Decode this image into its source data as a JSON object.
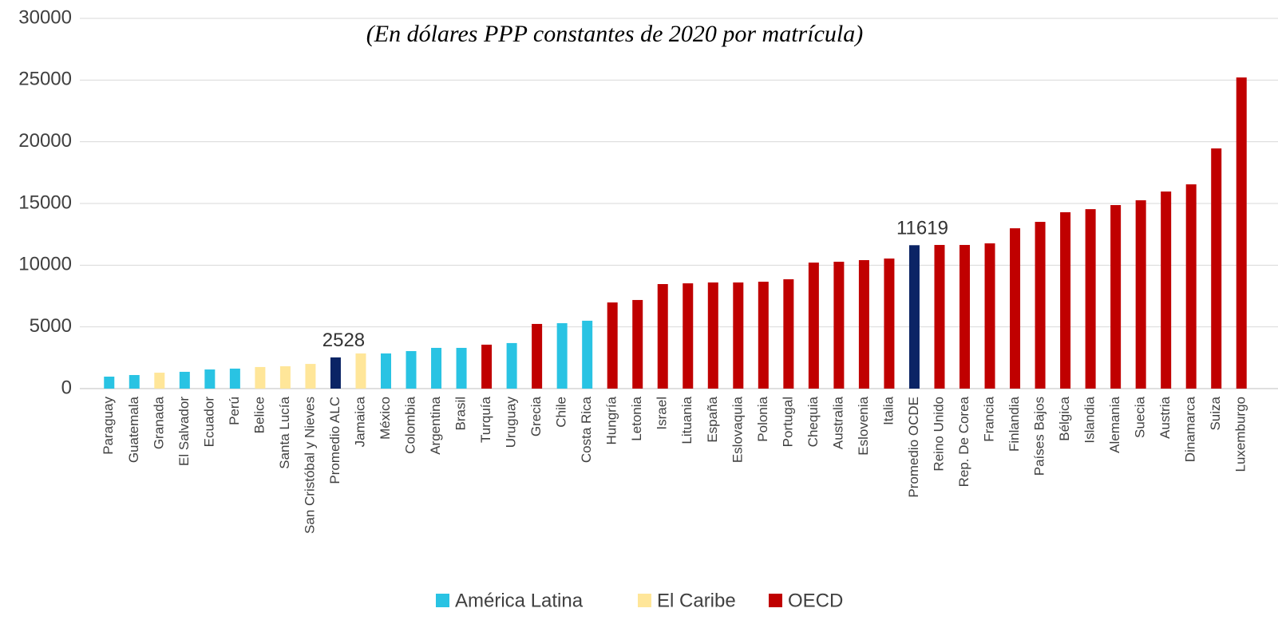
{
  "chart_data": {
    "type": "bar",
    "subtitle": "(En dólares PPP constantes de 2020 por matrícula)",
    "categories": [
      "Paraguay",
      "Guatemala",
      "Granada",
      "El Salvador",
      "Ecuador",
      "Perú",
      "Belice",
      "Santa Lucía",
      "San Cristóbal y Nieves",
      "Promedio ALC",
      "Jamaica",
      "México",
      "Colombia",
      "Argentina",
      "Brasil",
      "Turquía",
      "Uruguay",
      "Grecia",
      "Chile",
      "Costa Rica",
      "Hungría",
      "Letonia",
      "Israel",
      "Lituania",
      "España",
      "Eslovaquia",
      "Polonia",
      "Portugal",
      "Chequia",
      "Australia",
      "Eslovenia",
      "Italia",
      "Promedio OCDE",
      "Reino Unido",
      "Rep. De Corea",
      "Francia",
      "Finlandia",
      "Países Bajos",
      "Bélgica",
      "Islandia",
      "Alemania",
      "Suecia",
      "Austria",
      "Dinamarca",
      "Suiza",
      "Luxemburgo"
    ],
    "values": [
      970,
      1100,
      1290,
      1360,
      1550,
      1620,
      1750,
      1810,
      2000,
      2528,
      2850,
      2850,
      3040,
      3300,
      3300,
      3560,
      3690,
      5240,
      5300,
      5500,
      6980,
      7180,
      8470,
      8530,
      8600,
      8600,
      8660,
      8860,
      10210,
      10280,
      10410,
      10540,
      11619,
      11640,
      11640,
      11770,
      12990,
      13510,
      14290,
      14540,
      14870,
      15260,
      15970,
      16550,
      19460,
      25210
    ],
    "value_labels": [
      null,
      null,
      null,
      null,
      null,
      null,
      null,
      null,
      null,
      "2528",
      null,
      null,
      null,
      null,
      null,
      null,
      null,
      null,
      null,
      null,
      null,
      null,
      null,
      null,
      null,
      null,
      null,
      null,
      null,
      null,
      null,
      null,
      "11619",
      null,
      null,
      null,
      null,
      null,
      null,
      null,
      null,
      null,
      null,
      null,
      null,
      null
    ],
    "colors": [
      "#29c3e3",
      "#29c3e3",
      "#ffe699",
      "#29c3e3",
      "#29c3e3",
      "#29c3e3",
      "#ffe699",
      "#ffe699",
      "#ffe699",
      "#0b2465",
      "#ffe699",
      "#29c3e3",
      "#29c3e3",
      "#29c3e3",
      "#29c3e3",
      "#c00000",
      "#29c3e3",
      "#c00000",
      "#29c3e3",
      "#29c3e3",
      "#c00000",
      "#c00000",
      "#c00000",
      "#c00000",
      "#c00000",
      "#c00000",
      "#c00000",
      "#c00000",
      "#c00000",
      "#c00000",
      "#c00000",
      "#c00000",
      "#0b2465",
      "#c00000",
      "#c00000",
      "#c00000",
      "#c00000",
      "#c00000",
      "#c00000",
      "#c00000",
      "#c00000",
      "#c00000",
      "#c00000",
      "#c00000",
      "#c00000",
      "#c00000"
    ],
    "legend": [
      {
        "name": "América Latina",
        "color": "#29c3e3"
      },
      {
        "name": "El Caribe",
        "color": "#ffe699"
      },
      {
        "name": "OECD",
        "color": "#c00000"
      }
    ],
    "ylim": [
      0,
      30000
    ],
    "yticks": [
      0,
      5000,
      10000,
      15000,
      20000,
      25000,
      30000
    ],
    "grid": true
  }
}
